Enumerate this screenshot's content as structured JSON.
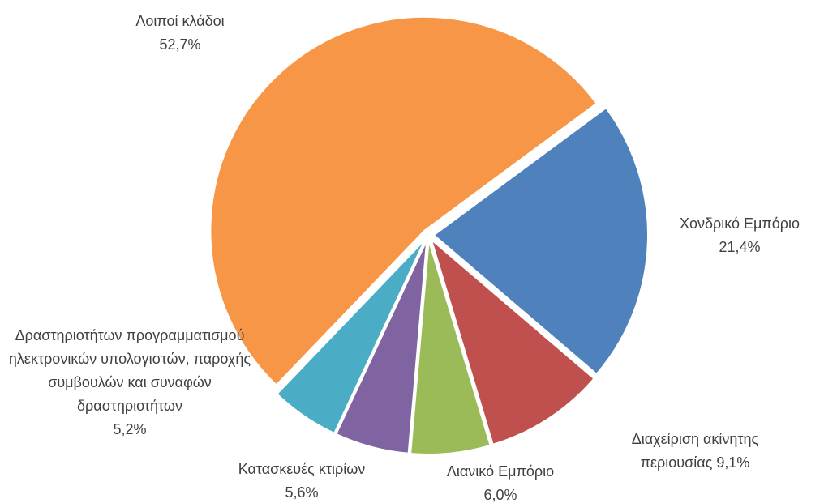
{
  "chart_data": {
    "type": "pie",
    "categories": [
      "Χονδρικό Εμπόριο",
      "Διαχείριση ακίνητης περιουσίας",
      "Λιανικό Εμπόριο",
      "Κατασκευές κτιρίων",
      "Δραστηριοτήτων προγραμματισμού ηλεκτρονικών υπολογιστών, παροχής συμβουλών και συναφών δραστηριοτήτων",
      "Λοιποί κλάδοι"
    ],
    "values": [
      21.4,
      9.1,
      6.0,
      5.6,
      5.2,
      52.7
    ],
    "value_labels": [
      "21,4%",
      "9,1%",
      "6,0%",
      "5,6%",
      "5,2%",
      "52,7%"
    ],
    "colors": [
      "#4f81bd",
      "#c0504d",
      "#9bbb59",
      "#8064a2",
      "#4bacc6",
      "#f79646"
    ]
  }
}
